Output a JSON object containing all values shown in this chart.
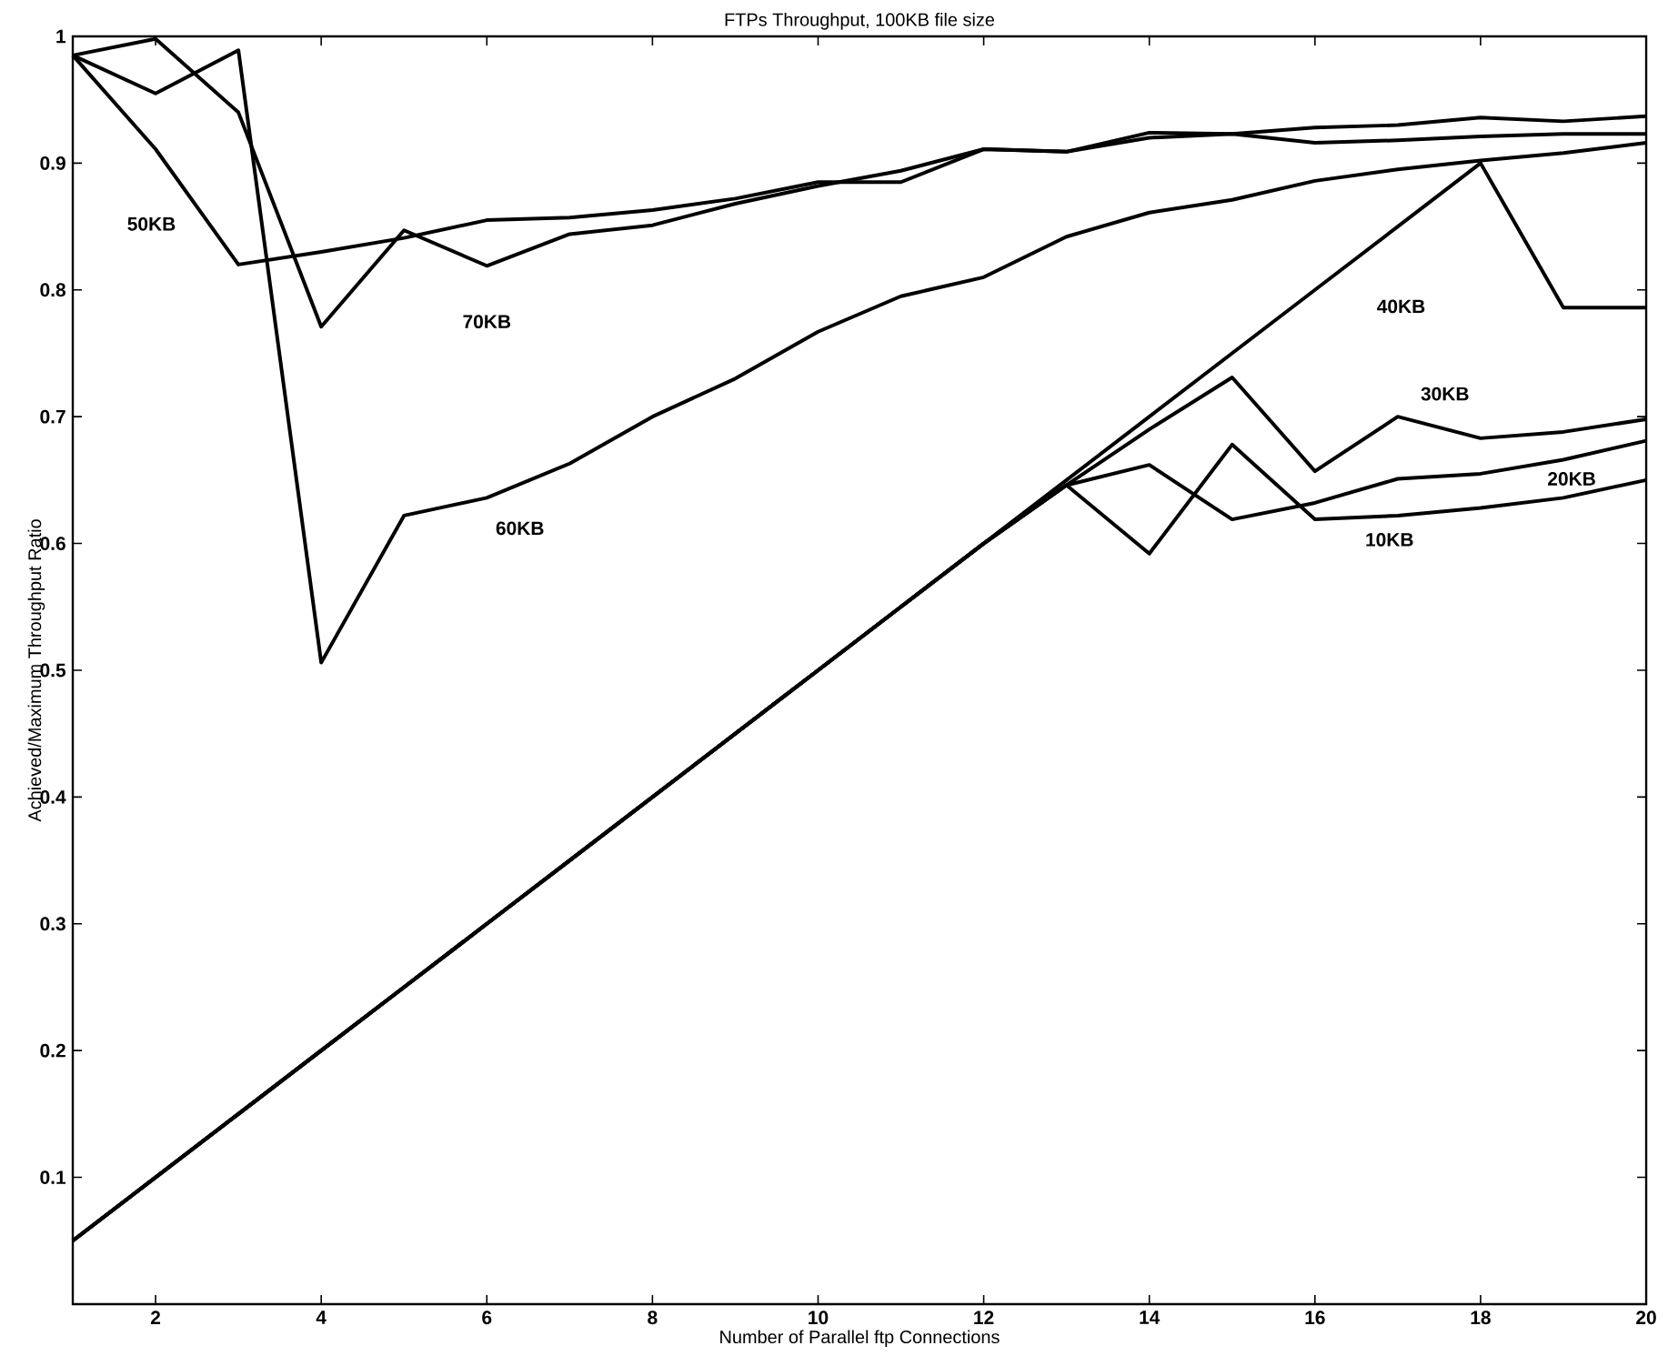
{
  "chart_data": {
    "type": "line",
    "title": "FTPs Throughput, 100KB file size",
    "xlabel": "Number of Parallel ftp Connections",
    "ylabel": "Achieved/Maximum Throughput Ratio",
    "x": [
      1,
      2,
      3,
      4,
      5,
      6,
      7,
      8,
      9,
      10,
      11,
      12,
      13,
      14,
      15,
      16,
      17,
      18,
      19,
      20
    ],
    "xlim": [
      1,
      20
    ],
    "ylim": [
      0,
      1
    ],
    "xticks": [
      2,
      4,
      6,
      8,
      10,
      12,
      14,
      16,
      18,
      20
    ],
    "yticks": [
      0.1,
      0.2,
      0.3,
      0.4,
      0.5,
      0.6,
      0.7,
      0.8,
      0.9,
      1
    ],
    "marker": "none",
    "line_style": "solid",
    "series": [
      {
        "name": "10KB",
        "color": "#000000",
        "values": [
          0.05,
          0.1,
          0.15,
          0.2,
          0.25,
          0.3,
          0.35,
          0.4,
          0.45,
          0.5,
          0.55,
          0.6,
          0.646,
          0.592,
          0.678,
          0.619,
          0.622,
          0.628,
          0.636,
          0.65
        ]
      },
      {
        "name": "20KB",
        "color": "#000000",
        "values": [
          0.05,
          0.1,
          0.15,
          0.2,
          0.25,
          0.3,
          0.35,
          0.4,
          0.45,
          0.5,
          0.55,
          0.6,
          0.646,
          0.662,
          0.619,
          0.632,
          0.651,
          0.655,
          0.666,
          0.681
        ]
      },
      {
        "name": "30KB",
        "color": "#000000",
        "values": [
          0.05,
          0.1,
          0.15,
          0.2,
          0.25,
          0.3,
          0.35,
          0.4,
          0.45,
          0.5,
          0.55,
          0.6,
          0.646,
          0.69,
          0.731,
          0.657,
          0.7,
          0.683,
          0.688,
          0.698
        ]
      },
      {
        "name": "40KB",
        "color": "#000000",
        "values": [
          0.05,
          0.1,
          0.15,
          0.2,
          0.25,
          0.3,
          0.35,
          0.4,
          0.45,
          0.5,
          0.55,
          0.6,
          0.65,
          0.7,
          0.75,
          0.8,
          0.85,
          0.9,
          0.786,
          0.786
        ]
      },
      {
        "name": "50KB",
        "color": "#000000",
        "values": [
          0.985,
          0.911,
          0.82,
          0.83,
          0.841,
          0.855,
          0.857,
          0.863,
          0.872,
          0.885,
          0.885,
          0.911,
          0.909,
          0.92,
          0.923,
          0.916,
          0.918,
          0.921,
          0.923,
          0.923
        ]
      },
      {
        "name": "60KB",
        "color": "#000000",
        "values": [
          0.985,
          0.955,
          0.989,
          0.506,
          0.622,
          0.636,
          0.663,
          0.7,
          0.73,
          0.767,
          0.795,
          0.81,
          0.842,
          0.861,
          0.871,
          0.886,
          0.895,
          0.902,
          0.908,
          0.916
        ]
      },
      {
        "name": "70KB",
        "color": "#000000",
        "values": [
          0.985,
          0.998,
          0.94,
          0.771,
          0.847,
          0.819,
          0.844,
          0.851,
          0.868,
          0.882,
          0.894,
          0.911,
          0.909,
          0.924,
          0.923,
          0.928,
          0.93,
          0.936,
          0.933,
          0.937
        ]
      }
    ]
  }
}
